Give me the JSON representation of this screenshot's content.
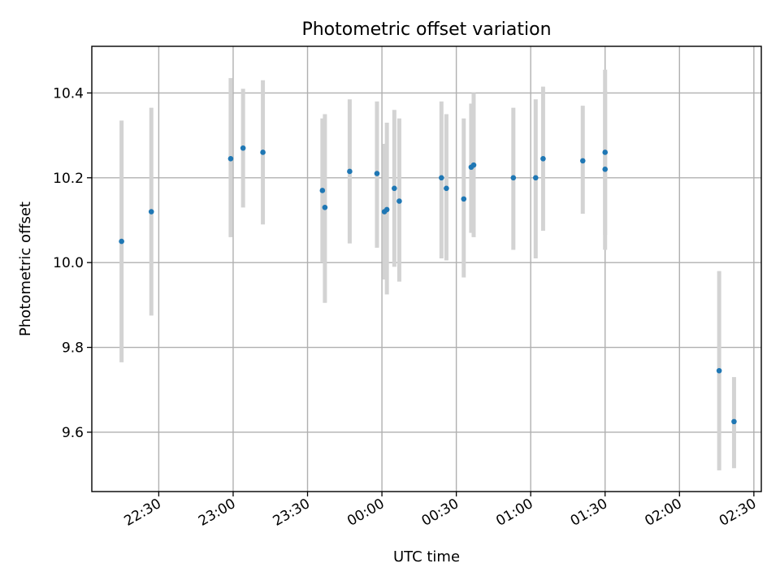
{
  "chart_data": {
    "type": "scatter",
    "title": "Photometric offset variation",
    "xlabel": "UTC time",
    "ylabel": "Photometric offset",
    "x_axis": {
      "unit": "UTC time",
      "range": [
        "22:03",
        "02:33"
      ],
      "ticks": [
        "22:30",
        "23:00",
        "23:30",
        "00:00",
        "00:30",
        "01:00",
        "01:30",
        "02:00",
        "02:30"
      ],
      "tick_label_rotation_deg": 30
    },
    "y_axis": {
      "range": [
        9.46,
        10.51
      ],
      "ticks": [
        "9.6",
        "9.8",
        "10.0",
        "10.2",
        "10.4"
      ]
    },
    "grid": true,
    "legend": "none",
    "marker_color": "#1f77b4",
    "errorbar_color": "#d3d3d3",
    "points": [
      {
        "t": "22:15",
        "y": 10.05,
        "ylow": 9.765,
        "yhigh": 10.335
      },
      {
        "t": "22:27",
        "y": 10.12,
        "ylow": 9.875,
        "yhigh": 10.365
      },
      {
        "t": "22:59",
        "y": 10.245,
        "ylow": 10.06,
        "yhigh": 10.435
      },
      {
        "t": "23:04",
        "y": 10.27,
        "ylow": 10.13,
        "yhigh": 10.41
      },
      {
        "t": "23:12",
        "y": 10.26,
        "ylow": 10.09,
        "yhigh": 10.43
      },
      {
        "t": "23:36",
        "y": 10.17,
        "ylow": 10.0,
        "yhigh": 10.34
      },
      {
        "t": "23:37",
        "y": 10.13,
        "ylow": 9.905,
        "yhigh": 10.35
      },
      {
        "t": "23:47",
        "y": 10.215,
        "ylow": 10.045,
        "yhigh": 10.385
      },
      {
        "t": "23:58",
        "y": 10.21,
        "ylow": 10.035,
        "yhigh": 10.38
      },
      {
        "t": "00:01",
        "y": 10.12,
        "ylow": 9.96,
        "yhigh": 10.28
      },
      {
        "t": "00:02",
        "y": 10.125,
        "ylow": 9.925,
        "yhigh": 10.33
      },
      {
        "t": "00:05",
        "y": 10.175,
        "ylow": 9.99,
        "yhigh": 10.36
      },
      {
        "t": "00:07",
        "y": 10.145,
        "ylow": 9.955,
        "yhigh": 10.34
      },
      {
        "t": "00:24",
        "y": 10.2,
        "ylow": 10.01,
        "yhigh": 10.38
      },
      {
        "t": "00:26",
        "y": 10.175,
        "ylow": 10.005,
        "yhigh": 10.35
      },
      {
        "t": "00:33",
        "y": 10.15,
        "ylow": 9.965,
        "yhigh": 10.34
      },
      {
        "t": "00:36",
        "y": 10.225,
        "ylow": 10.07,
        "yhigh": 10.375
      },
      {
        "t": "00:37",
        "y": 10.23,
        "ylow": 10.06,
        "yhigh": 10.4
      },
      {
        "t": "00:53",
        "y": 10.2,
        "ylow": 10.03,
        "yhigh": 10.365
      },
      {
        "t": "01:02",
        "y": 10.2,
        "ylow": 10.01,
        "yhigh": 10.385
      },
      {
        "t": "01:05",
        "y": 10.245,
        "ylow": 10.075,
        "yhigh": 10.415
      },
      {
        "t": "01:21",
        "y": 10.24,
        "ylow": 10.115,
        "yhigh": 10.37
      },
      {
        "t": "01:30",
        "y": 10.26,
        "ylow": 10.065,
        "yhigh": 10.455
      },
      {
        "t": "01:30",
        "y": 10.22,
        "ylow": 10.03,
        "yhigh": 10.405
      },
      {
        "t": "02:16",
        "y": 9.745,
        "ylow": 9.51,
        "yhigh": 9.98
      },
      {
        "t": "02:22",
        "y": 9.625,
        "ylow": 9.515,
        "yhigh": 9.73
      }
    ]
  }
}
